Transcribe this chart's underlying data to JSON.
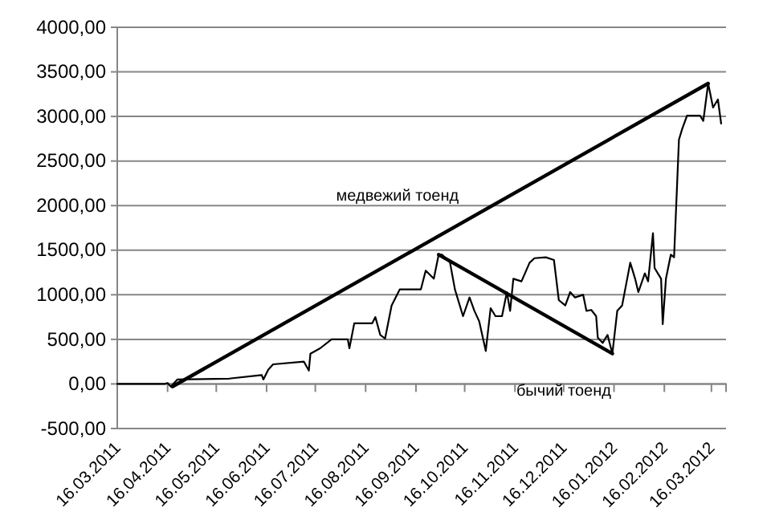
{
  "chart_data": {
    "type": "line",
    "xlim": [
      "2011-03-16",
      "2012-03-25"
    ],
    "xticks": [
      {
        "value": "2011-03-16",
        "label": "16.03.2011"
      },
      {
        "value": "2011-04-16",
        "label": "16.04.2011"
      },
      {
        "value": "2011-05-16",
        "label": "16.05.2011"
      },
      {
        "value": "2011-06-16",
        "label": "16.06.2011"
      },
      {
        "value": "2011-07-16",
        "label": "16.07.2011"
      },
      {
        "value": "2011-08-16",
        "label": "16.08.2011"
      },
      {
        "value": "2011-09-16",
        "label": "16.09.2011"
      },
      {
        "value": "2011-10-16",
        "label": "16.10.2011"
      },
      {
        "value": "2011-11-16",
        "label": "16.11.2011"
      },
      {
        "value": "2011-12-16",
        "label": "16.12.2011"
      },
      {
        "value": "2012-01-16",
        "label": "16.01.2012"
      },
      {
        "value": "2012-02-16",
        "label": "16.02.2012"
      },
      {
        "value": "2012-03-16",
        "label": "16.03.2012"
      }
    ],
    "ylim": [
      -500,
      4000
    ],
    "yticks": [
      {
        "value": -500,
        "label": "-500,00"
      },
      {
        "value": 0,
        "label": "0,00"
      },
      {
        "value": 500,
        "label": "500,00"
      },
      {
        "value": 1000,
        "label": "1000,00"
      },
      {
        "value": 1500,
        "label": "1500,00"
      },
      {
        "value": 2000,
        "label": "2000,00"
      },
      {
        "value": 2500,
        "label": "2500,00"
      },
      {
        "value": 3000,
        "label": "3000,00"
      },
      {
        "value": 3500,
        "label": "3500,00"
      },
      {
        "value": 4000,
        "label": "4000,00"
      }
    ],
    "grid": "y",
    "marker": "none",
    "line_style": "solid",
    "series": [
      {
        "color": "#000000",
        "x": [
          "2011-03-16",
          "2011-04-14",
          "2011-04-16",
          "2011-04-18",
          "2011-04-22",
          "2011-05-24",
          "2011-06-13",
          "2011-06-14",
          "2011-06-17",
          "2011-06-20",
          "2011-07-09",
          "2011-07-12",
          "2011-07-13",
          "2011-07-19",
          "2011-07-26",
          "2011-08-05",
          "2011-08-06",
          "2011-08-09",
          "2011-08-20",
          "2011-08-22",
          "2011-08-25",
          "2011-08-28",
          "2011-09-01",
          "2011-09-06",
          "2011-09-19",
          "2011-09-22",
          "2011-09-27",
          "2011-09-30",
          "2011-10-02",
          "2011-10-07",
          "2011-10-10",
          "2011-10-15",
          "2011-10-19",
          "2011-10-22",
          "2011-10-25",
          "2011-10-29",
          "2011-11-01",
          "2011-11-04",
          "2011-11-08",
          "2011-11-11",
          "2011-11-13",
          "2011-11-15",
          "2011-11-20",
          "2011-11-25",
          "2011-11-28",
          "2011-12-05",
          "2011-12-10",
          "2011-12-13",
          "2011-12-17",
          "2011-12-20",
          "2011-12-23",
          "2011-12-28",
          "2011-12-30",
          "2012-01-02",
          "2012-01-05",
          "2012-01-06",
          "2012-01-09",
          "2012-01-12",
          "2012-01-15",
          "2012-01-18",
          "2012-01-21",
          "2012-01-26",
          "2012-01-29",
          "2012-01-31",
          "2012-02-04",
          "2012-02-06",
          "2012-02-09",
          "2012-02-10",
          "2012-02-14",
          "2012-02-15",
          "2012-02-17",
          "2012-02-20",
          "2012-02-22",
          "2012-02-25",
          "2012-02-27",
          "2012-03-01",
          "2012-03-09",
          "2012-03-11",
          "2012-03-14",
          "2012-03-17",
          "2012-03-20",
          "2012-03-22"
        ],
        "values": [
          0,
          0,
          10,
          -30,
          50,
          60,
          100,
          50,
          160,
          220,
          250,
          150,
          340,
          400,
          500,
          500,
          400,
          680,
          680,
          750,
          550,
          510,
          880,
          1060,
          1060,
          1270,
          1180,
          1450,
          1450,
          1360,
          1060,
          760,
          970,
          820,
          700,
          370,
          850,
          760,
          760,
          1030,
          820,
          1180,
          1150,
          1360,
          1410,
          1420,
          1390,
          940,
          880,
          1030,
          970,
          1000,
          820,
          830,
          760,
          520,
          460,
          550,
          340,
          820,
          880,
          1360,
          1180,
          1030,
          1240,
          1150,
          1690,
          1300,
          1180,
          670,
          1180,
          1450,
          1420,
          2740,
          2860,
          3010,
          3010,
          2950,
          3370,
          3100,
          3190,
          2920
        ]
      },
      {
        "type": "line",
        "name": "медвежий тоенд",
        "color": "#000000",
        "x": [
          "2011-04-19",
          "2012-03-14"
        ],
        "values": [
          -30,
          3370
        ]
      },
      {
        "type": "line",
        "name": "бычий тоенд",
        "color": "#000000",
        "x": [
          "2011-09-30",
          "2012-01-15"
        ],
        "values": [
          1450,
          340
        ]
      }
    ]
  }
}
